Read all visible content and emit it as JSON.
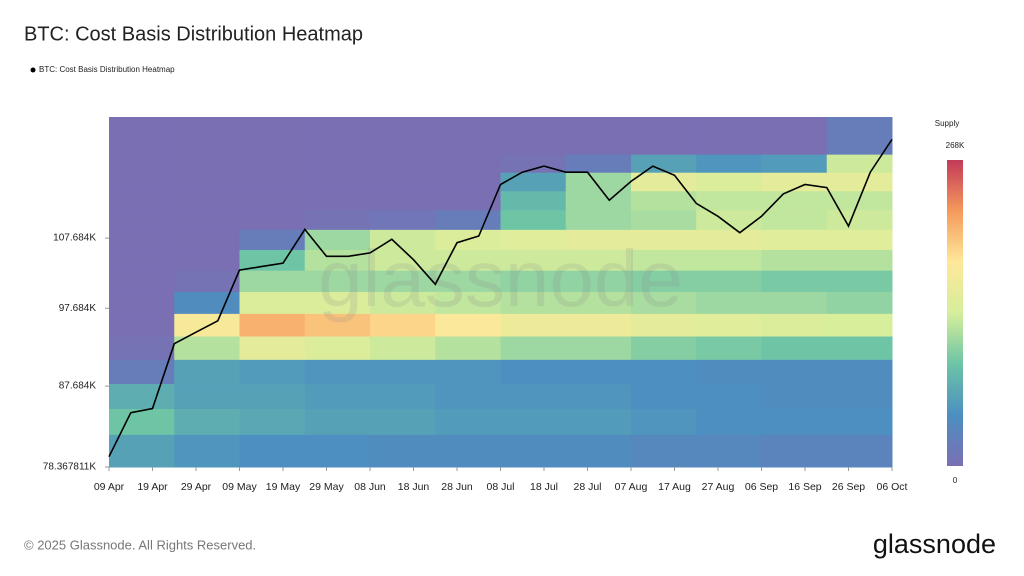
{
  "chart_data": {
    "type": "heatmap",
    "title": "BTC: Cost Basis Distribution Heatmap",
    "watermark": "glassnode",
    "footer": "© 2025 Glassnode. All Rights Reserved.",
    "brand": "glassnode",
    "categories": [
      "09 Apr",
      null,
      "19 Apr",
      null,
      "29 Apr",
      null,
      "09 May",
      null,
      "19 May",
      null,
      "29 May",
      null,
      "08 Jun",
      null,
      "18 Jun",
      null,
      "28 Jun",
      null,
      "08 Jul",
      null,
      "18 Jul",
      null,
      "28 Jul",
      null,
      "07 Aug",
      null,
      "17 Aug",
      null,
      "27 Aug",
      null,
      "06 Sep",
      null,
      "16 Sep",
      null,
      "26 Sep",
      null,
      "06 Oct"
    ],
    "log_y": true,
    "ylim": [
      78367.811,
      127400
    ],
    "yticks": [
      {
        "value": 78367.811,
        "label": "78.367811K"
      },
      {
        "value": 87684,
        "label": "87.684K"
      },
      {
        "value": 97684,
        "label": "97.684K"
      },
      {
        "value": 107684,
        "label": "107.684K"
      }
    ],
    "line": {
      "name": "BTC: Cost Basis Distribution Heatmap",
      "color": "#000000",
      "values": [
        79500,
        84500,
        85000,
        93000,
        94500,
        96000,
        103000,
        103500,
        104000,
        109000,
        105000,
        105000,
        105500,
        107500,
        104500,
        101000,
        107000,
        108000,
        116000,
        118000,
        119000,
        118000,
        118000,
        113500,
        116500,
        119000,
        117500,
        113000,
        111000,
        108500,
        111000,
        114500,
        116000,
        115500,
        109500,
        118000,
        123500
      ]
    },
    "heatmap": {
      "price_bins": [
        78367.811,
        82000,
        85000,
        88000,
        91000,
        94000,
        97000,
        100000,
        103000,
        106000,
        109000,
        112000,
        115000,
        118000,
        121000,
        127400
      ],
      "values": [
        [
          60000,
          50000,
          45000,
          45000,
          40000,
          40000,
          40000,
          40000,
          35000,
          35000,
          30000,
          30000
        ],
        [
          90000,
          70000,
          65000,
          60000,
          60000,
          55000,
          55000,
          55000,
          50000,
          45000,
          45000,
          45000
        ],
        [
          70000,
          60000,
          60000,
          55000,
          55000,
          50000,
          50000,
          50000,
          45000,
          45000,
          40000,
          40000
        ],
        [
          20000,
          60000,
          55000,
          50000,
          50000,
          50000,
          45000,
          45000,
          45000,
          40000,
          40000,
          40000
        ],
        [
          5000,
          120000,
          150000,
          140000,
          130000,
          120000,
          110000,
          110000,
          100000,
          95000,
          90000,
          90000
        ],
        [
          0,
          170000,
          210000,
          200000,
          190000,
          175000,
          160000,
          160000,
          150000,
          145000,
          140000,
          135000
        ],
        [
          0,
          40000,
          140000,
          140000,
          130000,
          125000,
          120000,
          120000,
          115000,
          110000,
          110000,
          105000
        ],
        [
          0,
          5000,
          110000,
          110000,
          110000,
          110000,
          105000,
          105000,
          100000,
          100000,
          95000,
          95000
        ],
        [
          0,
          0,
          90000,
          120000,
          130000,
          130000,
          130000,
          130000,
          125000,
          125000,
          120000,
          120000
        ],
        [
          0,
          0,
          20000,
          110000,
          130000,
          140000,
          145000,
          150000,
          150000,
          150000,
          145000,
          145000
        ],
        [
          0,
          0,
          0,
          5000,
          10000,
          20000,
          90000,
          110000,
          115000,
          130000,
          125000,
          130000
        ],
        [
          0,
          0,
          0,
          0,
          0,
          0,
          80000,
          110000,
          120000,
          125000,
          125000,
          125000
        ],
        [
          0,
          0,
          0,
          0,
          0,
          0,
          60000,
          110000,
          150000,
          140000,
          150000,
          150000
        ],
        [
          0,
          0,
          0,
          0,
          0,
          0,
          5000,
          20000,
          60000,
          50000,
          55000,
          130000
        ],
        [
          0,
          0,
          0,
          0,
          0,
          0,
          0,
          0,
          0,
          0,
          0,
          20000
        ]
      ]
    },
    "colorbar": {
      "title": "Supply",
      "range": [
        0,
        268000
      ],
      "ticks": [
        {
          "value": 0,
          "label": "0"
        },
        {
          "value": 268000,
          "label": "268K"
        }
      ]
    },
    "colorscale": [
      "#7b6fb4",
      "#4c8fc0",
      "#6cc4a6",
      "#d6ee9b",
      "#fee89a",
      "#f59a5b",
      "#c2395a"
    ]
  }
}
